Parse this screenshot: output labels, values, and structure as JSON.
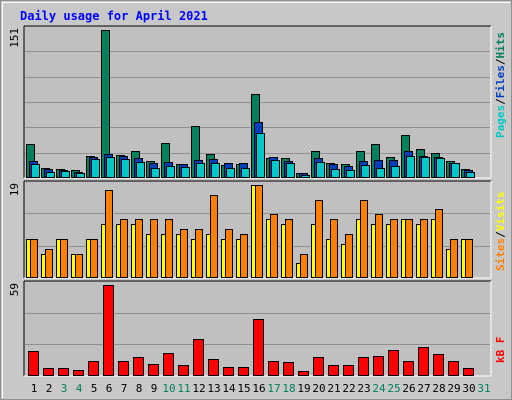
{
  "chart_data": [
    {
      "panel": "hits",
      "type": "bar",
      "title": "Daily usage for April 2021",
      "max_label": "151",
      "ylim": [
        0,
        151
      ],
      "legend": [
        {
          "label": "Pages",
          "color": "#00c8c8"
        },
        {
          "label": "Files",
          "color": "#0040c0"
        },
        {
          "label": "Hits",
          "color": "#00805c"
        }
      ],
      "legend_sep": "/",
      "categories": [
        "1",
        "2",
        "3",
        "4",
        "5",
        "6",
        "7",
        "8",
        "9",
        "10",
        "11",
        "12",
        "13",
        "14",
        "15",
        "16",
        "17",
        "18",
        "19",
        "20",
        "21",
        "22",
        "23",
        "24",
        "25",
        "26",
        "27",
        "28",
        "29",
        "30",
        "31"
      ],
      "weekend_days": [
        "3",
        "4",
        "10",
        "11",
        "17",
        "18",
        "24",
        "25",
        "31"
      ],
      "series": [
        {
          "name": "Hits",
          "values": [
            35,
            10,
            9,
            8,
            22,
            151,
            23,
            28,
            17,
            36,
            14,
            53,
            24,
            13,
            14,
            86,
            20,
            20,
            5,
            28,
            15,
            14,
            28,
            35,
            21,
            44,
            30,
            25,
            17,
            9,
            0
          ]
        },
        {
          "name": "Files",
          "values": [
            17,
            9,
            8,
            6,
            21,
            24,
            22,
            20,
            15,
            16,
            14,
            18,
            19,
            15,
            15,
            57,
            21,
            17,
            5,
            20,
            14,
            12,
            17,
            18,
            18,
            28,
            22,
            21,
            15,
            8,
            0
          ]
        },
        {
          "name": "Pages",
          "values": [
            14,
            6,
            7,
            5,
            19,
            21,
            19,
            16,
            10,
            12,
            11,
            15,
            15,
            10,
            10,
            46,
            18,
            15,
            3,
            16,
            9,
            8,
            13,
            10,
            12,
            22,
            21,
            20,
            15,
            6,
            0
          ]
        }
      ]
    },
    {
      "panel": "visits",
      "type": "bar",
      "max_label": "19",
      "ylim": [
        0,
        19
      ],
      "legend": [
        {
          "label": "Sites",
          "color": "#ff8000"
        },
        {
          "label": "Visits",
          "color": "#ffff00"
        }
      ],
      "legend_sep": "/",
      "categories": [
        "1",
        "2",
        "3",
        "4",
        "5",
        "6",
        "7",
        "8",
        "9",
        "10",
        "11",
        "12",
        "13",
        "14",
        "15",
        "16",
        "17",
        "18",
        "19",
        "20",
        "21",
        "22",
        "23",
        "24",
        "25",
        "26",
        "27",
        "28",
        "29",
        "30",
        "31"
      ],
      "series": [
        {
          "name": "Visits",
          "values": [
            8,
            5,
            8,
            5,
            8,
            11,
            11,
            11,
            9,
            9,
            9,
            8,
            9,
            8,
            8,
            19,
            12,
            11,
            3,
            11,
            8,
            7,
            12,
            11,
            11,
            12,
            11,
            12,
            6,
            8,
            0
          ]
        },
        {
          "name": "Sites",
          "values": [
            8,
            6,
            8,
            5,
            8,
            18,
            12,
            12,
            12,
            12,
            10,
            10,
            17,
            10,
            9,
            19,
            13,
            12,
            5,
            16,
            12,
            9,
            16,
            13,
            12,
            12,
            12,
            14,
            8,
            8,
            0
          ]
        }
      ]
    },
    {
      "panel": "kbytes",
      "type": "bar",
      "max_label": "59",
      "ylim": [
        0,
        59
      ],
      "legend": [
        {
          "label": "kB F",
          "color": "#ff0000"
        }
      ],
      "categories": [
        "1",
        "2",
        "3",
        "4",
        "5",
        "6",
        "7",
        "8",
        "9",
        "10",
        "11",
        "12",
        "13",
        "14",
        "15",
        "16",
        "17",
        "18",
        "19",
        "20",
        "21",
        "22",
        "23",
        "24",
        "25",
        "26",
        "27",
        "28",
        "29",
        "30",
        "31"
      ],
      "series": [
        {
          "name": "kB F",
          "values": [
            16,
            5,
            5,
            4,
            10,
            59,
            10,
            12,
            8,
            15,
            7,
            24,
            11,
            6,
            6,
            37,
            10,
            9,
            3,
            12,
            7,
            7,
            12,
            13,
            17,
            10,
            19,
            14,
            10,
            5,
            0
          ]
        }
      ]
    }
  ],
  "colors": {
    "hits": "#00805c",
    "files": "#0040c0",
    "pages": "#00c8c8",
    "visits": "#ffff00",
    "sites": "#ff8000",
    "kbytes": "#ff0000",
    "title": "#0000ff",
    "weekday_label": "#000000",
    "weekend_label": "#00805c",
    "plot_bg": "#c0c0c0",
    "frame_bg": "#c8c8c8",
    "grid": "#909090"
  }
}
